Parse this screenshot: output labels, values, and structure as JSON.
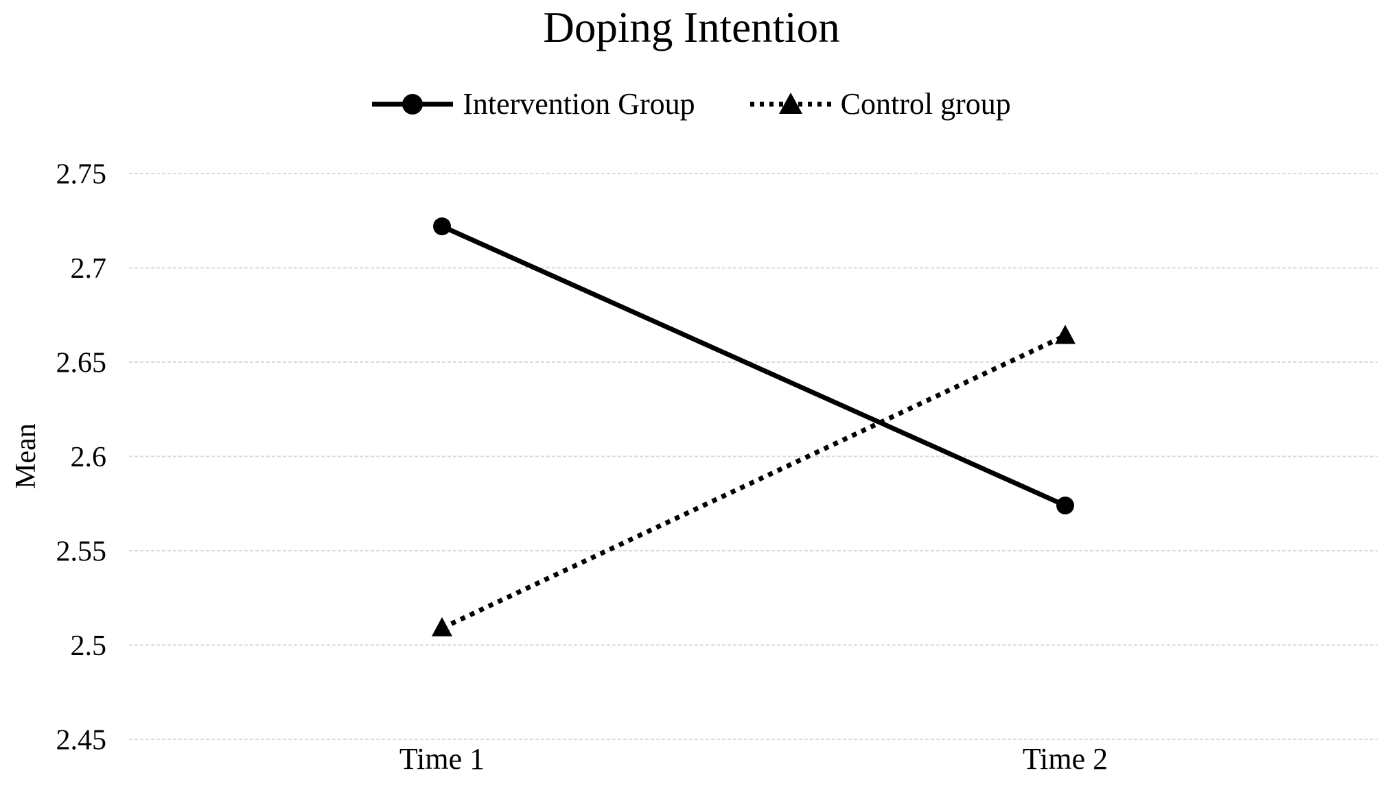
{
  "chart_data": {
    "type": "line",
    "title": "Doping Intention",
    "xlabel": "",
    "ylabel": "Mean",
    "categories": [
      "Time 1",
      "Time 2"
    ],
    "series": [
      {
        "name": "Intervention Group",
        "line_style": "solid",
        "marker": "circle",
        "values": [
          2.722,
          2.574
        ]
      },
      {
        "name": "Control group",
        "line_style": "dotted",
        "marker": "triangle",
        "values": [
          2.509,
          2.664
        ]
      }
    ],
    "ylim": [
      2.45,
      2.75
    ],
    "ytick_step": 0.05,
    "yticks": [
      "2.75",
      "2.7",
      "2.65",
      "2.6",
      "2.55",
      "2.5",
      "2.45"
    ],
    "grid": "horizontal-dashed",
    "legend_position": "top-center",
    "colors": {
      "series": "#000000",
      "gridline": "#d9d9d9",
      "text": "#000000",
      "background": "#ffffff"
    }
  }
}
